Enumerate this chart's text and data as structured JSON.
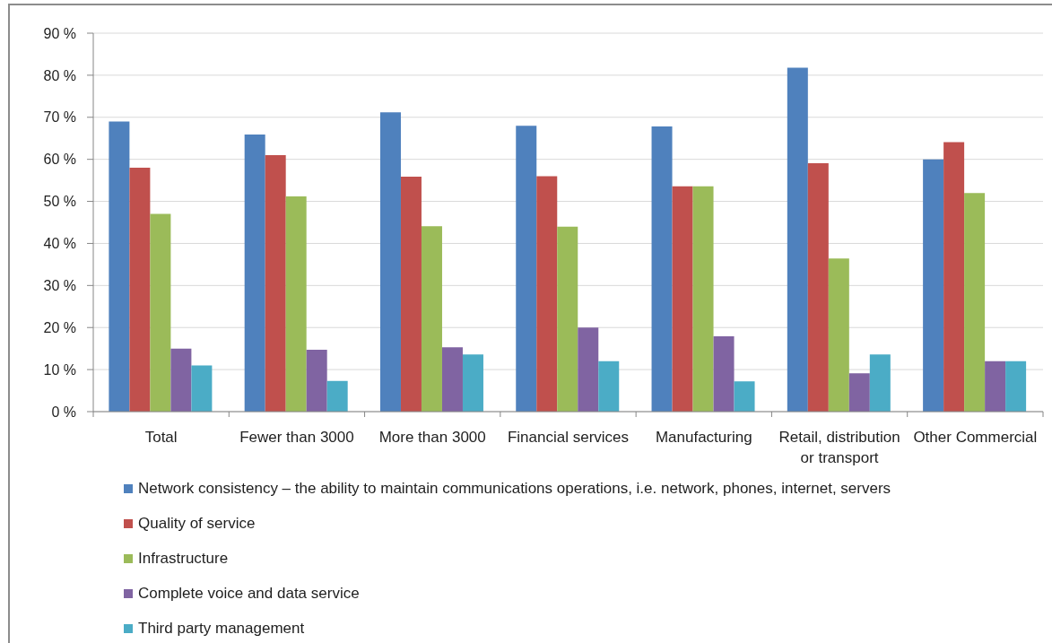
{
  "chart_data": {
    "type": "bar",
    "categories": [
      "Total",
      "Fewer than 3000",
      "More than 3000",
      "Financial services",
      "Manufacturing",
      "Retail, distribution or transport",
      "Other Commercial"
    ],
    "series": [
      {
        "name": "Network consistency – the ability to maintain communications operations, i.e. network, phones, internet, servers",
        "color": "#4f81bd",
        "values": [
          69,
          65.9,
          71.2,
          68,
          67.8,
          81.8,
          60
        ]
      },
      {
        "name": "Quality of service",
        "color": "#c0504d",
        "values": [
          58,
          61,
          55.9,
          56,
          53.6,
          59.1,
          64.1
        ]
      },
      {
        "name": "Infrastructure",
        "color": "#9bbb59",
        "values": [
          47,
          51.2,
          44.1,
          44,
          53.6,
          36.4,
          52
        ]
      },
      {
        "name": "Complete voice and data service",
        "color": "#8064a2",
        "values": [
          15,
          14.7,
          15.3,
          20,
          17.9,
          9.1,
          12
        ]
      },
      {
        "name": "Third party management",
        "color": "#4bacc6",
        "values": [
          11,
          7.3,
          13.6,
          12,
          7.2,
          13.6,
          12
        ]
      }
    ],
    "ylim": [
      0,
      90
    ],
    "yticks": [
      {
        "value": 0,
        "label": "0 %"
      },
      {
        "value": 10,
        "label": "10 %"
      },
      {
        "value": 20,
        "label": "20 %"
      },
      {
        "value": 30,
        "label": "30 %"
      },
      {
        "value": 40,
        "label": "40 %"
      },
      {
        "value": 50,
        "label": "50 %"
      },
      {
        "value": 60,
        "label": "60 %"
      },
      {
        "value": 70,
        "label": "70 %"
      },
      {
        "value": 80,
        "label": "80 %"
      },
      {
        "value": 90,
        "label": "90 %"
      }
    ],
    "grid": "y",
    "legend": "bottom"
  }
}
